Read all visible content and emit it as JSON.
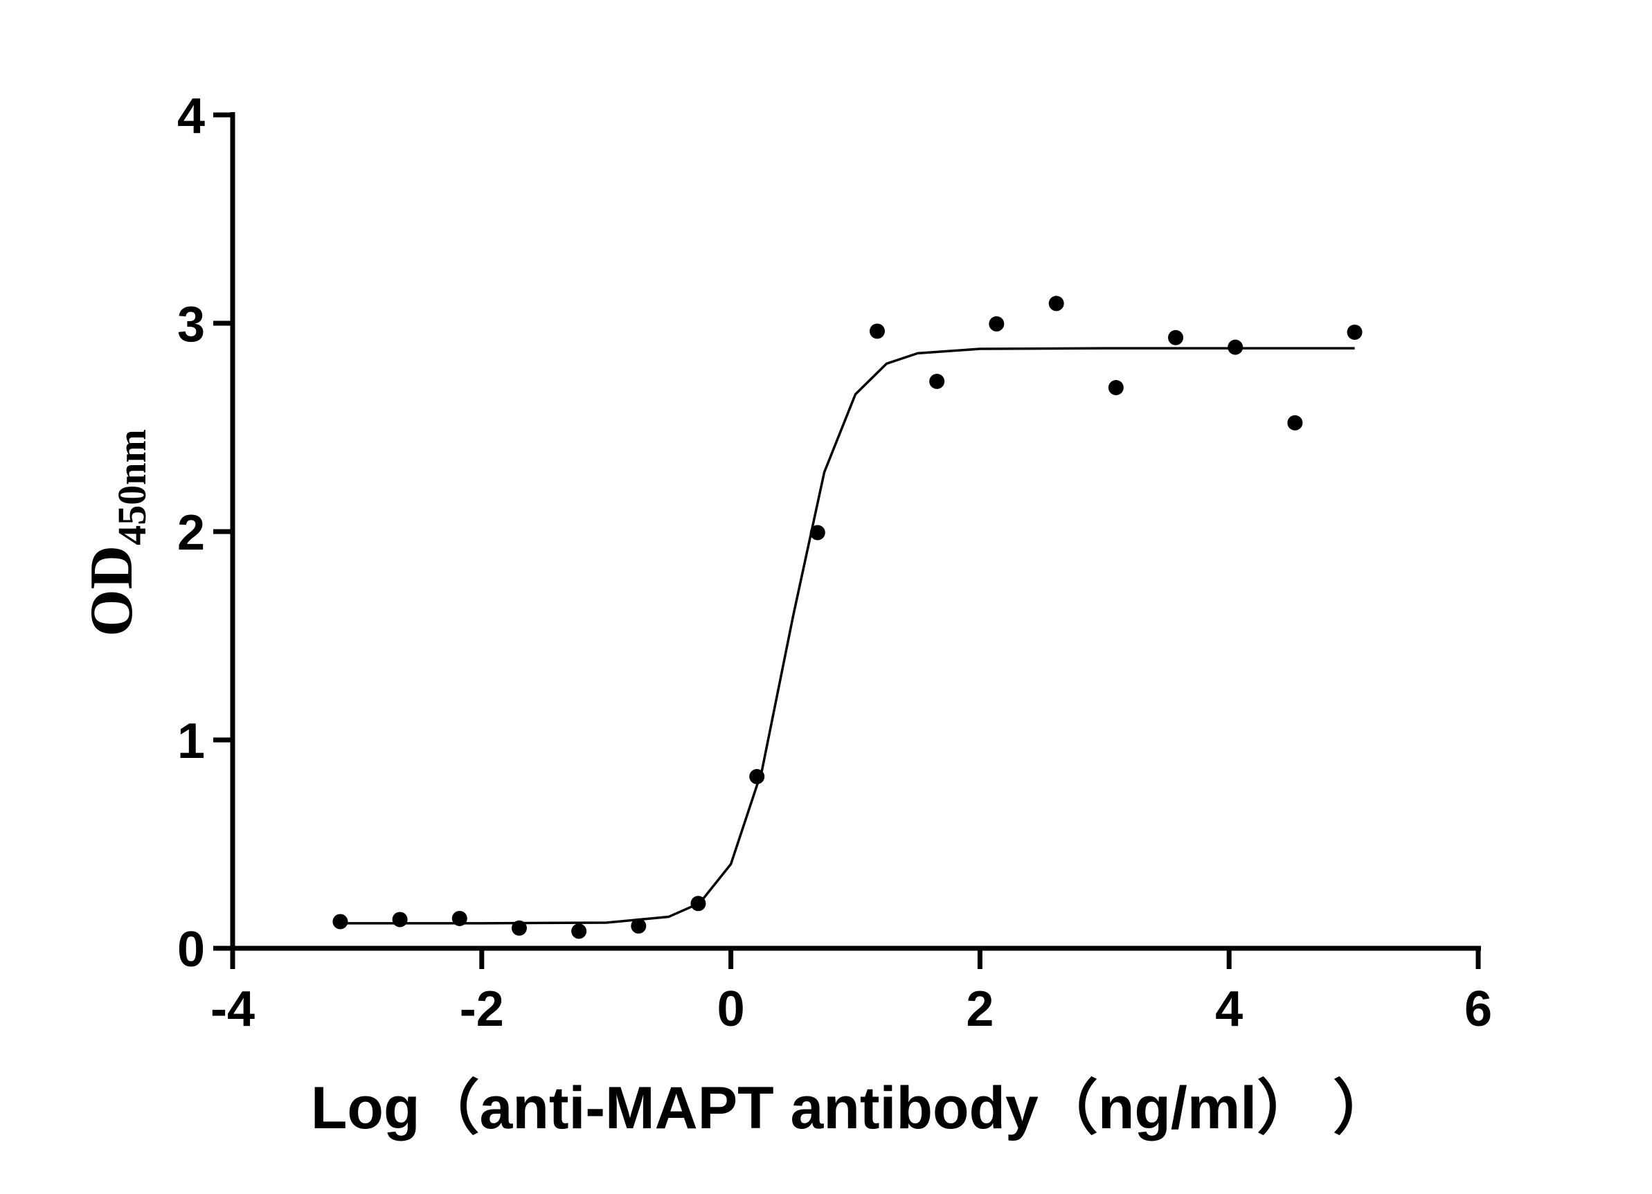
{
  "chart_data": {
    "type": "scatter",
    "xlabel": "Log（anti-MAPT antibody（ng/ml）  ）",
    "ylabel": "OD",
    "ylabel_sub": "450nm",
    "x": [
      -3.136,
      -2.657,
      -2.178,
      -1.699,
      -1.22,
      -0.741,
      -0.262,
      0.209,
      0.696,
      1.175,
      1.654,
      2.133,
      2.613,
      3.092,
      3.571,
      4.05,
      4.529,
      5.008
    ],
    "values": [
      0.128,
      0.138,
      0.143,
      0.097,
      0.082,
      0.107,
      0.215,
      0.824,
      1.995,
      2.962,
      2.721,
      2.997,
      3.095,
      2.691,
      2.931,
      2.885,
      2.522,
      2.957
    ],
    "color": "#000000",
    "fit": {
      "x": [
        -3.136,
        -2,
        -1,
        -0.5,
        -0.25,
        0,
        0.25,
        0.5,
        0.75,
        1,
        1.25,
        1.5,
        2,
        3,
        4,
        5.008
      ],
      "values": [
        0.12,
        0.12,
        0.123,
        0.151,
        0.217,
        0.404,
        0.855,
        1.595,
        2.285,
        2.659,
        2.806,
        2.856,
        2.877,
        2.88,
        2.88,
        2.88
      ]
    },
    "xlim": [
      -4,
      6
    ],
    "xticks": [
      -4,
      -2,
      0,
      2,
      4,
      6
    ],
    "ylim": [
      0,
      4
    ],
    "yticks": [
      0,
      1,
      2,
      3,
      4
    ]
  }
}
